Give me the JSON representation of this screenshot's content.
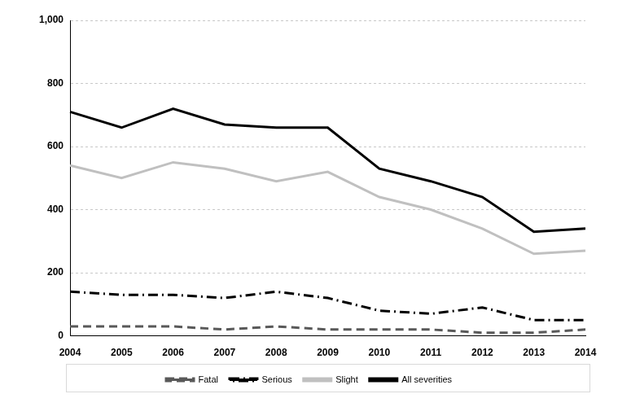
{
  "chart_data": {
    "type": "line",
    "categories": [
      "2004",
      "2005",
      "2006",
      "2007",
      "2008",
      "2009",
      "2010",
      "2011",
      "2012",
      "2013",
      "2014"
    ],
    "series": [
      {
        "name": "Fatal",
        "color": "#595959",
        "line_style": "dashed",
        "values": [
          30,
          30,
          30,
          20,
          30,
          20,
          20,
          20,
          10,
          10,
          20
        ]
      },
      {
        "name": "Serious",
        "color": "#000000",
        "line_style": "dashdot",
        "values": [
          140,
          130,
          130,
          120,
          140,
          120,
          80,
          70,
          90,
          50,
          50
        ]
      },
      {
        "name": "Slight",
        "color": "#c0c0c0",
        "line_style": "solid",
        "values": [
          540,
          500,
          550,
          530,
          490,
          520,
          440,
          400,
          340,
          260,
          270
        ]
      },
      {
        "name": "All severities",
        "color": "#000000",
        "line_style": "solid",
        "values": [
          710,
          660,
          720,
          670,
          660,
          660,
          530,
          490,
          440,
          330,
          340
        ]
      }
    ],
    "ylim": [
      0,
      1000
    ],
    "yticks": [
      0,
      200,
      400,
      600,
      800,
      {
        "value": 1000,
        "label": "1,000"
      }
    ],
    "grid": true,
    "legend": "bottom"
  }
}
